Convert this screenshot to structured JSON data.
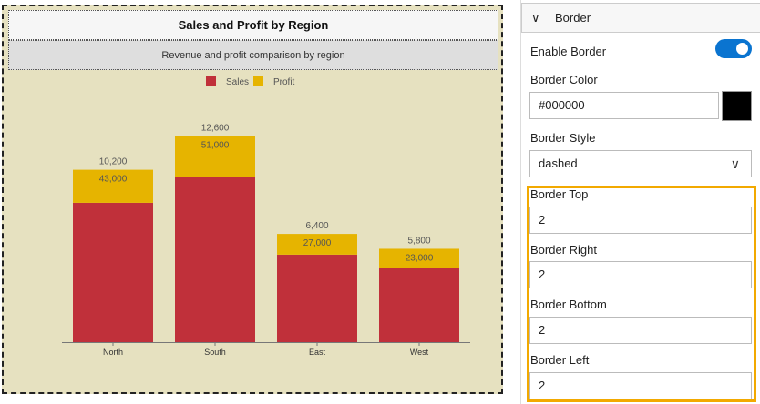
{
  "chart_data": {
    "type": "bar",
    "stacked": true,
    "title": "Sales and Profit by Region",
    "subtitle": "Revenue and profit comparison by region",
    "categories": [
      "North",
      "South",
      "East",
      "West"
    ],
    "series": [
      {
        "name": "Sales",
        "values": [
          43000,
          51000,
          27000,
          23000
        ],
        "color": "#c0303a",
        "labels": [
          "43,000",
          "51,000",
          "27,000",
          "23,000"
        ]
      },
      {
        "name": "Profit",
        "values": [
          10200,
          12600,
          6400,
          5800
        ],
        "color": "#e6b400",
        "labels": [
          "10,200",
          "12,600",
          "6,400",
          "5,800"
        ]
      }
    ],
    "legend": "top",
    "grid": false,
    "background": "#e6e1c0"
  },
  "panel": {
    "section_title": "Border",
    "enable_border_label": "Enable Border",
    "enable_border": true,
    "border_color_label": "Border Color",
    "border_color_value": "#000000",
    "border_style_label": "Border Style",
    "border_style_value": "dashed",
    "border_top_label": "Border Top",
    "border_top": "2",
    "border_right_label": "Border Right",
    "border_right": "2",
    "border_bottom_label": "Border Bottom",
    "border_bottom": "2",
    "border_left_label": "Border Left",
    "border_left": "2",
    "accent": "#0a74d0",
    "highlight": "#f2a900"
  }
}
